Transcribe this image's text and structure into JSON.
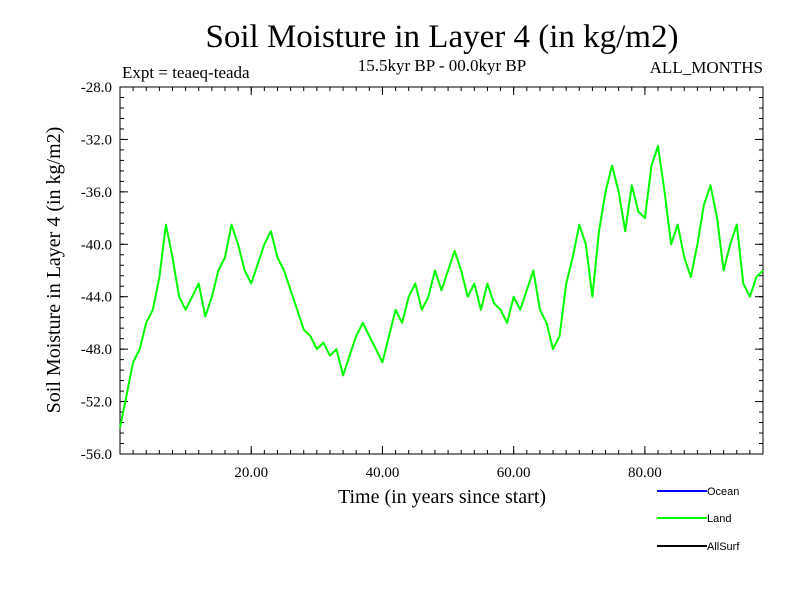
{
  "chart_data": {
    "type": "line",
    "title": "Soil Moisture in Layer 4 (in kg/m2)",
    "experiment_label": "Expt = teaeq-teada",
    "period_label": "15.5kyr BP - 00.0kyr BP",
    "months_label": "ALL_MONTHS",
    "xlabel": "Time (in years since start)",
    "ylabel": "Soil Moisture in Layer 4 (in kg/m2)",
    "xlim": [
      0,
      98
    ],
    "ylim": [
      -56.0,
      -28.0
    ],
    "x_ticks": [
      {
        "value": 20,
        "label": "20.00"
      },
      {
        "value": 40,
        "label": "40.00"
      },
      {
        "value": 60,
        "label": "60.00"
      },
      {
        "value": 80,
        "label": "80.00"
      }
    ],
    "y_ticks": [
      {
        "value": -28.0,
        "label": "-28.0"
      },
      {
        "value": -32.0,
        "label": "-32.0"
      },
      {
        "value": -36.0,
        "label": "-36.0"
      },
      {
        "value": -40.0,
        "label": "-40.0"
      },
      {
        "value": -44.0,
        "label": "-44.0"
      },
      {
        "value": -48.0,
        "label": "-48.0"
      },
      {
        "value": -52.0,
        "label": "-52.0"
      },
      {
        "value": -56.0,
        "label": "-56.0"
      }
    ],
    "legend": [
      {
        "name": "Ocean",
        "color": "#0000ff"
      },
      {
        "name": "Land",
        "color": "#00ff00"
      },
      {
        "name": "AllSurf",
        "color": "#000000"
      }
    ],
    "series": [
      {
        "name": "Land",
        "color": "#00ff00",
        "x": [
          0,
          1,
          2,
          3,
          4,
          5,
          6,
          7,
          8,
          9,
          10,
          11,
          12,
          13,
          14,
          15,
          16,
          17,
          18,
          19,
          20,
          21,
          22,
          23,
          24,
          25,
          26,
          27,
          28,
          29,
          30,
          31,
          32,
          33,
          34,
          35,
          36,
          37,
          38,
          39,
          40,
          41,
          42,
          43,
          44,
          45,
          46,
          47,
          48,
          49,
          50,
          51,
          52,
          53,
          54,
          55,
          56,
          57,
          58,
          59,
          60,
          61,
          62,
          63,
          64,
          65,
          66,
          67,
          68,
          69,
          70,
          71,
          72,
          73,
          74,
          75,
          76,
          77,
          78,
          79,
          80,
          81,
          82,
          83,
          84,
          85,
          86,
          87,
          88,
          89,
          90,
          91,
          92,
          93,
          94,
          95,
          96,
          97,
          98
        ],
        "values": [
          -54.0,
          -51.5,
          -49.0,
          -48.0,
          -46.0,
          -45.0,
          -42.5,
          -38.5,
          -41.0,
          -44.0,
          -45.0,
          -44.0,
          -43.0,
          -45.5,
          -44.0,
          -42.0,
          -41.0,
          -38.5,
          -40.0,
          -42.0,
          -43.0,
          -41.5,
          -40.0,
          -39.0,
          -41.0,
          -42.0,
          -43.5,
          -45.0,
          -46.5,
          -47.0,
          -48.0,
          -47.5,
          -48.5,
          -48.0,
          -50.0,
          -48.5,
          -47.0,
          -46.0,
          -47.0,
          -48.0,
          -49.0,
          -47.0,
          -45.0,
          -46.0,
          -44.0,
          -43.0,
          -45.0,
          -44.0,
          -42.0,
          -43.5,
          -42.0,
          -40.5,
          -42.0,
          -44.0,
          -43.0,
          -45.0,
          -43.0,
          -44.5,
          -45.0,
          -46.0,
          -44.0,
          -45.0,
          -43.5,
          -42.0,
          -45.0,
          -46.0,
          -48.0,
          -47.0,
          -43.0,
          -41.0,
          -38.5,
          -40.0,
          -44.0,
          -39.0,
          -36.0,
          -34.0,
          -36.0,
          -39.0,
          -35.5,
          -37.5,
          -38.0,
          -34.0,
          -32.5,
          -36.0,
          -40.0,
          -38.5,
          -41.0,
          -42.5,
          -40.0,
          -37.0,
          -35.5,
          -38.0,
          -42.0,
          -40.0,
          -38.5,
          -43.0,
          -44.0,
          -42.5,
          -42.0
        ]
      }
    ]
  }
}
